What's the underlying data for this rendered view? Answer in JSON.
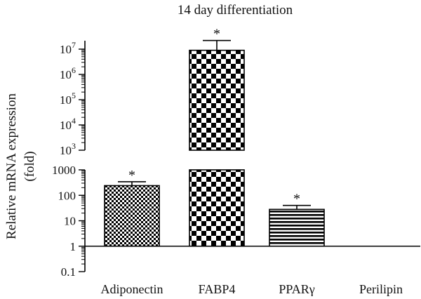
{
  "chart_data": {
    "type": "bar",
    "title": "14 day differentiation",
    "ylabel_line1": "Relative mRNA expression",
    "ylabel_line2": "(fold)",
    "yscale": "log",
    "axis_break": [
      1000,
      1000
    ],
    "ylim": [
      0.1,
      10000000
    ],
    "upper_ticks": [
      {
        "value": 1000,
        "base": "10",
        "exp": "3"
      },
      {
        "value": 10000,
        "base": "10",
        "exp": "4"
      },
      {
        "value": 100000,
        "base": "10",
        "exp": "5"
      },
      {
        "value": 1000000,
        "base": "10",
        "exp": "6"
      },
      {
        "value": 10000000,
        "base": "10",
        "exp": "7"
      }
    ],
    "lower_ticks": [
      {
        "value": 0.1,
        "label": "0.1"
      },
      {
        "value": 1,
        "label": "1"
      },
      {
        "value": 10,
        "label": "10"
      },
      {
        "value": 100,
        "label": "100"
      },
      {
        "value": 1000,
        "label": "1000"
      }
    ],
    "categories": [
      "Adiponectin",
      "FABP4",
      "PPARγ",
      "Perilipin"
    ],
    "values": [
      240,
      9000000,
      28,
      1
    ],
    "error_upper": [
      340,
      22000000,
      40,
      null
    ],
    "significance": [
      "*",
      "*",
      "*",
      ""
    ],
    "patterns": [
      "small-checker",
      "large-checker",
      "horizontal-stripes",
      "none"
    ],
    "colors": {
      "ink": "#000000",
      "fill": "#ffffff"
    }
  }
}
